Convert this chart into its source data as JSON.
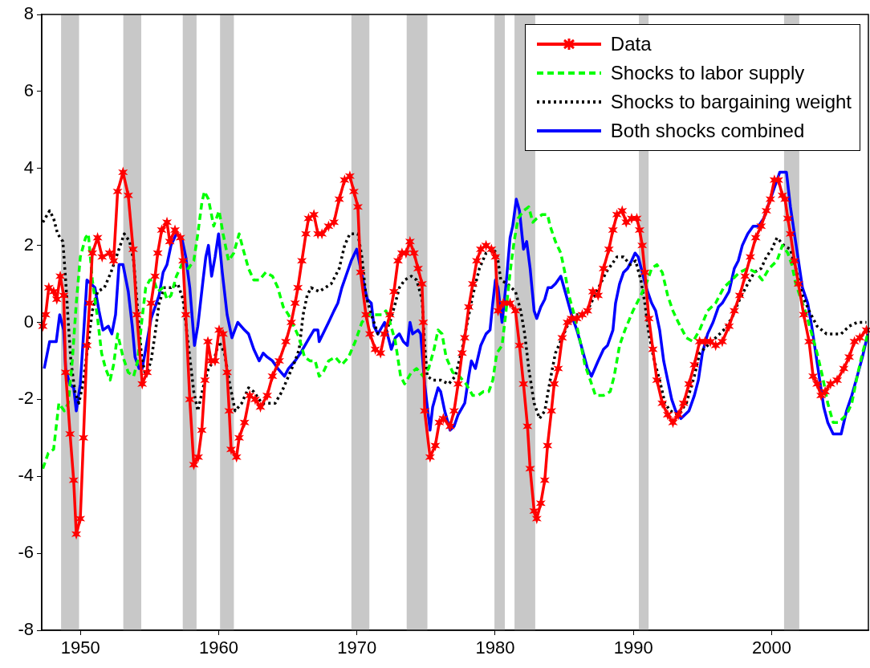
{
  "chart_data": {
    "type": "line",
    "xlim": [
      1947.2,
      2007.0
    ],
    "xticks": [
      1950,
      1960,
      1970,
      1980,
      1990,
      2000
    ],
    "ylim": [
      -8,
      8
    ],
    "yticks": [
      -8,
      -6,
      -4,
      -2,
      0,
      2,
      4,
      6,
      8
    ],
    "grid": false,
    "legend": "top right",
    "bands": [
      {
        "axis": "x",
        "from": 1948.6,
        "to": 1949.9,
        "color": "#c8c8c8"
      },
      {
        "axis": "x",
        "from": 1953.1,
        "to": 1954.4,
        "color": "#c8c8c8"
      },
      {
        "axis": "x",
        "from": 1957.4,
        "to": 1958.4,
        "color": "#c8c8c8"
      },
      {
        "axis": "x",
        "from": 1960.1,
        "to": 1961.1,
        "color": "#c8c8c8"
      },
      {
        "axis": "x",
        "from": 1969.6,
        "to": 1970.9,
        "color": "#c8c8c8"
      },
      {
        "axis": "x",
        "from": 1973.6,
        "to": 1975.1,
        "color": "#c8c8c8"
      },
      {
        "axis": "x",
        "from": 1979.95,
        "to": 1980.7,
        "color": "#c8c8c8"
      },
      {
        "axis": "x",
        "from": 1981.4,
        "to": 1982.9,
        "color": "#c8c8c8"
      },
      {
        "axis": "x",
        "from": 1990.4,
        "to": 1991.1,
        "color": "#c8c8c8"
      },
      {
        "axis": "x",
        "from": 2000.9,
        "to": 2002.0,
        "color": "#c8c8c8"
      }
    ],
    "series": [
      {
        "name": "Data",
        "color": "#ff0000",
        "line_style": "solid",
        "marker": "cross",
        "x": [
          1947.28,
          1947.48,
          1947.71,
          1948.06,
          1948.29,
          1948.54,
          1948.79,
          1948.93,
          1949.25,
          1949.51,
          1949.7,
          1949.99,
          1950.22,
          1950.47,
          1950.66,
          1950.86,
          1951.24,
          1951.57,
          1952.11,
          1952.4,
          1952.69,
          1953.08,
          1953.46,
          1953.81,
          1954.08,
          1954.47,
          1954.82,
          1955.11,
          1955.4,
          1955.59,
          1955.88,
          1956.26,
          1956.46,
          1956.84,
          1957.23,
          1957.42,
          1957.62,
          1957.91,
          1958.2,
          1958.52,
          1958.78,
          1959.01,
          1959.22,
          1959.45,
          1959.74,
          1960.03,
          1960.32,
          1960.61,
          1960.76,
          1960.9,
          1961.29,
          1961.48,
          1961.87,
          1962.25,
          1962.64,
          1963.02,
          1963.51,
          1963.89,
          1964.38,
          1964.86,
          1965.25,
          1965.53,
          1965.73,
          1966.02,
          1966.31,
          1966.5,
          1966.89,
          1967.18,
          1967.47,
          1967.95,
          1968.34,
          1968.72,
          1969.11,
          1969.49,
          1969.78,
          1970.07,
          1970.27,
          1970.65,
          1970.94,
          1971.33,
          1971.71,
          1972.0,
          1972.39,
          1972.68,
          1972.97,
          1973.26,
          1973.55,
          1973.84,
          1974.13,
          1974.42,
          1974.71,
          1974.8,
          1974.9,
          1975.29,
          1975.67,
          1975.96,
          1976.25,
          1976.74,
          1977.03,
          1977.32,
          1977.61,
          1977.8,
          1978.09,
          1978.38,
          1978.67,
          1978.96,
          1979.34,
          1979.73,
          1980.02,
          1980.21,
          1980.6,
          1981.08,
          1981.47,
          1981.76,
          1982.05,
          1982.34,
          1982.53,
          1982.82,
          1983.01,
          1983.3,
          1983.59,
          1983.79,
          1984.07,
          1984.27,
          1984.56,
          1984.85,
          1985.23,
          1985.52,
          1985.91,
          1986.3,
          1986.68,
          1987.07,
          1987.45,
          1987.84,
          1988.23,
          1988.52,
          1988.81,
          1989.19,
          1989.48,
          1989.87,
          1990.25,
          1990.45,
          1990.64,
          1990.83,
          1991.12,
          1991.41,
          1991.7,
          1992.09,
          1992.48,
          1992.86,
          1993.25,
          1993.63,
          1994.02,
          1994.41,
          1994.79,
          1995.18,
          1995.57,
          1995.95,
          1996.43,
          1996.92,
          1997.3,
          1997.69,
          1998.08,
          1998.46,
          1998.85,
          1999.24,
          1999.62,
          1999.91,
          2000.2,
          2000.49,
          2000.78,
          2000.97,
          2001.17,
          2001.36,
          2001.65,
          2001.94,
          2002.32,
          2002.71,
          2003.0,
          2003.29,
          2003.58,
          2003.87,
          2004.26,
          2004.74,
          2005.22,
          2005.61,
          2005.99,
          2006.38,
          2006.86
        ],
        "values": [
          -0.1,
          0.2,
          0.9,
          0.8,
          0.6,
          1.2,
          0.7,
          -1.3,
          -2.9,
          -4.1,
          -5.5,
          -5.1,
          -3.0,
          -0.6,
          0.5,
          1.8,
          2.2,
          1.7,
          1.8,
          1.6,
          3.4,
          3.9,
          3.3,
          1.9,
          0.2,
          -1.6,
          -1.3,
          0.5,
          1.2,
          1.8,
          2.4,
          2.6,
          2.1,
          2.4,
          2.2,
          1.6,
          0.2,
          -2.0,
          -3.7,
          -3.5,
          -2.8,
          -1.5,
          -0.5,
          -1.0,
          -1.0,
          -0.2,
          -0.3,
          -1.3,
          -2.3,
          -3.3,
          -3.5,
          -3.0,
          -2.6,
          -1.9,
          -2.0,
          -2.2,
          -1.9,
          -1.4,
          -1.0,
          -0.5,
          0.0,
          0.5,
          0.9,
          1.6,
          2.3,
          2.7,
          2.8,
          2.3,
          2.3,
          2.5,
          2.6,
          3.2,
          3.7,
          3.8,
          3.4,
          3.0,
          1.3,
          0.2,
          -0.3,
          -0.7,
          -0.8,
          -0.3,
          0.2,
          0.8,
          1.6,
          1.8,
          1.8,
          2.1,
          1.8,
          1.4,
          1.0,
          0.0,
          -2.3,
          -3.5,
          -3.2,
          -2.6,
          -2.5,
          -2.7,
          -2.3,
          -1.6,
          -0.8,
          -0.4,
          0.4,
          1.0,
          1.6,
          1.9,
          2.0,
          1.9,
          1.7,
          0.3,
          0.5,
          0.5,
          0.3,
          -0.6,
          -1.6,
          -2.7,
          -3.8,
          -4.9,
          -5.1,
          -4.7,
          -4.1,
          -3.2,
          -2.3,
          -1.6,
          -1.2,
          -0.4,
          0.0,
          0.1,
          0.1,
          0.2,
          0.3,
          0.8,
          0.7,
          1.4,
          1.9,
          2.4,
          2.8,
          2.9,
          2.6,
          2.7,
          2.7,
          2.4,
          2.0,
          1.3,
          0.1,
          -0.7,
          -1.5,
          -2.1,
          -2.4,
          -2.6,
          -2.4,
          -2.1,
          -1.6,
          -1.1,
          -0.5,
          -0.5,
          -0.5,
          -0.6,
          -0.5,
          -0.1,
          0.3,
          0.7,
          1.2,
          1.7,
          2.2,
          2.5,
          2.9,
          3.2,
          3.7,
          3.7,
          3.3,
          3.2,
          2.7,
          2.3,
          1.6,
          1.0,
          0.2,
          -0.5,
          -1.4,
          -1.6,
          -1.9,
          -1.8,
          -1.6,
          -1.5,
          -1.2,
          -0.9,
          -0.5,
          -0.4,
          -0.2
        ]
      },
      {
        "name": "Shocks to labor supply",
        "color": "#00ff00",
        "line_style": "dashed",
        "marker": "none",
        "x": [
          1947.28,
          1947.67,
          1948.06,
          1948.44,
          1948.83,
          1949.12,
          1949.41,
          1949.7,
          1949.99,
          1950.37,
          1950.57,
          1950.86,
          1951.24,
          1951.53,
          1951.82,
          1952.15,
          1952.4,
          1952.69,
          1953.08,
          1953.46,
          1953.85,
          1954.14,
          1954.43,
          1954.72,
          1955.01,
          1955.3,
          1955.59,
          1955.98,
          1956.26,
          1956.55,
          1956.94,
          1957.33,
          1957.81,
          1958.2,
          1958.49,
          1958.78,
          1958.97,
          1959.26,
          1959.64,
          1960.03,
          1960.32,
          1960.71,
          1961.09,
          1961.48,
          1961.77,
          1962.16,
          1962.54,
          1962.93,
          1963.41,
          1963.89,
          1964.28,
          1964.67,
          1965.05,
          1965.44,
          1965.82,
          1966.21,
          1966.6,
          1966.98,
          1967.27,
          1967.56,
          1967.95,
          1968.43,
          1968.91,
          1969.4,
          1969.88,
          1970.36,
          1970.85,
          1971.33,
          1971.81,
          1972.1,
          1972.39,
          1972.78,
          1973.16,
          1973.45,
          1973.94,
          1974.32,
          1974.8,
          1975.19,
          1975.58,
          1975.87,
          1976.16,
          1976.45,
          1976.93,
          1977.41,
          1977.89,
          1978.38,
          1978.76,
          1979.15,
          1979.54,
          1979.83,
          1980.12,
          1980.5,
          1980.79,
          1981.08,
          1981.37,
          1981.66,
          1982.05,
          1982.43,
          1982.72,
          1983.01,
          1983.4,
          1983.79,
          1983.98,
          1984.36,
          1984.75,
          1985.04,
          1985.33,
          1985.72,
          1986.1,
          1986.49,
          1986.88,
          1987.26,
          1987.84,
          1988.32,
          1988.61,
          1989.0,
          1989.39,
          1989.97,
          1990.54,
          1991.03,
          1991.32,
          1991.7,
          1992.09,
          1992.48,
          1992.86,
          1993.25,
          1993.83,
          1994.31,
          1994.79,
          1995.37,
          1995.95,
          1996.53,
          1997.11,
          1997.69,
          1998.27,
          1998.85,
          1999.33,
          1999.81,
          2000.39,
          2000.78,
          2001.17,
          2001.46,
          2001.75,
          2002.13,
          2002.52,
          2002.9,
          2003.29,
          2003.68,
          2004.06,
          2004.45,
          2004.84,
          2005.42,
          2005.8,
          2006.19,
          2006.57,
          2006.96
        ],
        "values": [
          -3.8,
          -3.4,
          -3.3,
          -2.1,
          -2.3,
          -2.1,
          -1.0,
          0.5,
          1.7,
          2.2,
          2.3,
          1.1,
          0.1,
          -0.8,
          -1.2,
          -1.5,
          -1.1,
          -0.3,
          -0.9,
          -1.3,
          -1.4,
          -1.0,
          0.0,
          0.9,
          1.1,
          1.1,
          0.8,
          0.9,
          0.6,
          0.7,
          1.2,
          1.5,
          1.4,
          1.6,
          2.3,
          3.1,
          3.4,
          3.2,
          2.5,
          2.9,
          2.3,
          1.6,
          1.8,
          2.3,
          1.9,
          1.4,
          1.1,
          1.1,
          1.3,
          1.2,
          0.9,
          0.4,
          0.2,
          -0.1,
          -0.4,
          -0.9,
          -1.0,
          -1.0,
          -1.4,
          -1.3,
          -1.0,
          -0.9,
          -1.1,
          -0.9,
          -0.5,
          0.0,
          0.2,
          0.2,
          0.2,
          0.3,
          0.0,
          -0.5,
          -1.4,
          -1.6,
          -1.3,
          -1.2,
          -1.4,
          -1.2,
          -0.7,
          -0.2,
          -0.3,
          -0.9,
          -1.3,
          -1.4,
          -1.6,
          -1.9,
          -1.9,
          -1.8,
          -1.8,
          -1.5,
          -0.8,
          -0.6,
          0.3,
          1.3,
          2.1,
          2.7,
          2.9,
          3.0,
          2.6,
          2.7,
          2.8,
          2.8,
          2.5,
          2.1,
          1.8,
          1.3,
          0.7,
          0.2,
          -0.4,
          -1.1,
          -1.5,
          -1.9,
          -1.9,
          -1.8,
          -1.4,
          -0.6,
          -0.2,
          0.3,
          0.7,
          1.1,
          1.4,
          1.5,
          1.3,
          0.7,
          0.3,
          0.0,
          -0.4,
          -0.5,
          -0.2,
          0.3,
          0.5,
          0.9,
          1.1,
          1.3,
          1.4,
          1.3,
          1.1,
          1.4,
          1.6,
          2.0,
          1.8,
          1.5,
          1.0,
          0.6,
          0.2,
          -0.3,
          -0.8,
          -1.4,
          -2.1,
          -2.6,
          -2.6,
          -2.4,
          -2.1,
          -1.4,
          -0.8,
          -0.3
        ]
      },
      {
        "name": "Shocks to bargaining weight",
        "color": "#000000",
        "line_style": "dotted",
        "marker": "none",
        "x": [
          1947.28,
          1947.77,
          1948.06,
          1948.35,
          1948.73,
          1948.93,
          1949.12,
          1949.31,
          1949.6,
          1949.89,
          1950.18,
          1950.47,
          1950.86,
          1951.24,
          1951.73,
          1952.21,
          1952.69,
          1953.17,
          1953.56,
          1953.85,
          1954.14,
          1954.43,
          1954.72,
          1955.11,
          1955.4,
          1955.69,
          1956.07,
          1956.55,
          1957.04,
          1957.42,
          1957.81,
          1958.2,
          1958.49,
          1958.87,
          1959.26,
          1959.64,
          1960.03,
          1960.42,
          1960.8,
          1961.19,
          1961.67,
          1962.16,
          1962.54,
          1963.12,
          1963.51,
          1964.09,
          1964.57,
          1965.05,
          1965.53,
          1965.82,
          1966.11,
          1966.4,
          1966.69,
          1967.27,
          1968.14,
          1968.72,
          1969.11,
          1969.49,
          1970.07,
          1970.36,
          1970.65,
          1971.04,
          1971.52,
          1972.0,
          1972.39,
          1972.78,
          1973.07,
          1973.45,
          1973.94,
          1974.32,
          1974.71,
          1974.9,
          1975.09,
          1975.48,
          1976.06,
          1976.64,
          1977.12,
          1977.61,
          1977.99,
          1978.38,
          1978.86,
          1979.34,
          1979.83,
          1980.12,
          1980.41,
          1980.89,
          1981.47,
          1981.85,
          1982.14,
          1982.43,
          1982.82,
          1983.21,
          1983.59,
          1983.98,
          1984.36,
          1984.85,
          1985.33,
          1985.72,
          1986.3,
          1986.68,
          1987.07,
          1988.03,
          1988.81,
          1989.29,
          1989.77,
          1990.16,
          1990.54,
          1990.83,
          1991.12,
          1991.51,
          1991.9,
          1992.28,
          1992.67,
          1993.25,
          1993.83,
          1994.41,
          1994.79,
          1995.37,
          1995.95,
          1996.53,
          1997.11,
          1997.69,
          1998.27,
          1998.75,
          1999.24,
          1999.62,
          2000.01,
          2000.39,
          2000.88,
          2001.36,
          2001.75,
          2002.23,
          2002.71,
          2003.29,
          2003.97,
          2004.45,
          2005.03,
          2005.61,
          2006.19,
          2006.86
        ],
        "values": [
          2.6,
          2.9,
          2.7,
          2.3,
          2.1,
          1.1,
          0.0,
          -1.0,
          -1.8,
          -2.1,
          -1.6,
          -0.8,
          0.3,
          0.8,
          0.9,
          1.3,
          1.8,
          2.3,
          2.1,
          1.6,
          0.3,
          -0.9,
          -1.4,
          -1.0,
          -0.3,
          0.5,
          0.9,
          0.9,
          1.0,
          0.6,
          -0.6,
          -1.8,
          -2.3,
          -1.7,
          -1.2,
          -1.0,
          -0.5,
          -0.8,
          -1.6,
          -2.3,
          -2.1,
          -1.7,
          -1.8,
          -2.1,
          -2.1,
          -2.1,
          -1.8,
          -1.4,
          -1.0,
          -0.7,
          0.2,
          0.7,
          0.9,
          0.8,
          1.0,
          1.4,
          2.0,
          2.3,
          2.3,
          1.7,
          0.7,
          0.2,
          -0.3,
          -0.3,
          0.0,
          0.5,
          0.9,
          1.1,
          1.2,
          1.1,
          0.6,
          -0.6,
          -1.4,
          -1.5,
          -1.5,
          -1.6,
          -1.4,
          -0.7,
          0.0,
          0.7,
          1.4,
          1.8,
          1.9,
          1.8,
          1.1,
          1.0,
          0.8,
          0.3,
          -0.3,
          -1.2,
          -2.1,
          -2.5,
          -2.3,
          -1.5,
          -0.8,
          -0.4,
          0.0,
          0.2,
          0.2,
          0.3,
          0.6,
          1.3,
          1.7,
          1.7,
          1.5,
          1.6,
          1.1,
          0.5,
          -0.3,
          -1.0,
          -1.5,
          -2.1,
          -2.3,
          -2.4,
          -2.1,
          -1.4,
          -0.8,
          -0.6,
          -0.4,
          -0.2,
          0.1,
          0.6,
          1.0,
          1.3,
          1.4,
          1.7,
          1.9,
          2.2,
          2.0,
          1.9,
          1.4,
          0.7,
          0.3,
          -0.1,
          -0.3,
          -0.3,
          -0.3,
          -0.1,
          0.0,
          0.0
        ]
      },
      {
        "name": "Both shocks combined",
        "color": "#0000ff",
        "line_style": "solid",
        "marker": "none",
        "x": [
          1947.38,
          1947.77,
          1948.25,
          1948.5,
          1948.79,
          1948.93,
          1949.22,
          1949.51,
          1949.7,
          1949.99,
          1950.28,
          1950.47,
          1950.76,
          1951.05,
          1951.34,
          1951.63,
          1952.02,
          1952.27,
          1952.54,
          1952.79,
          1953.08,
          1953.46,
          1953.75,
          1953.95,
          1954.24,
          1954.47,
          1954.72,
          1955.11,
          1955.4,
          1955.69,
          1955.98,
          1956.26,
          1956.55,
          1956.94,
          1957.33,
          1957.62,
          1957.91,
          1958.25,
          1958.49,
          1958.87,
          1959.07,
          1959.26,
          1959.49,
          1959.74,
          1959.99,
          1960.26,
          1960.61,
          1960.96,
          1961.38,
          1961.87,
          1962.16,
          1962.54,
          1962.93,
          1963.22,
          1963.51,
          1963.89,
          1964.28,
          1964.76,
          1965.05,
          1965.53,
          1965.92,
          1966.4,
          1966.89,
          1967.18,
          1967.27,
          1967.95,
          1968.34,
          1968.62,
          1968.91,
          1969.2,
          1969.59,
          1969.98,
          1970.27,
          1970.56,
          1970.75,
          1971.04,
          1971.23,
          1971.52,
          1972.0,
          1972.2,
          1972.49,
          1972.78,
          1973.07,
          1973.36,
          1973.65,
          1973.84,
          1974.03,
          1974.42,
          1974.61,
          1974.9,
          1975.29,
          1975.48,
          1975.87,
          1976.06,
          1976.35,
          1976.74,
          1977.03,
          1977.32,
          1977.8,
          1978.09,
          1978.28,
          1978.57,
          1978.96,
          1979.34,
          1979.63,
          1979.83,
          1980.02,
          1980.21,
          1980.5,
          1980.79,
          1981.08,
          1981.27,
          1981.53,
          1981.76,
          1982.05,
          1982.28,
          1982.53,
          1982.82,
          1983.01,
          1983.3,
          1983.59,
          1983.82,
          1984.07,
          1984.36,
          1984.75,
          1985.14,
          1985.52,
          1985.91,
          1986.3,
          1986.68,
          1986.97,
          1987.45,
          1987.84,
          1988.13,
          1988.52,
          1988.71,
          1989.0,
          1989.29,
          1989.58,
          1989.87,
          1990.12,
          1990.35,
          1990.64,
          1990.93,
          1991.32,
          1991.61,
          1991.9,
          1992.19,
          1992.48,
          1992.77,
          1993.06,
          1993.44,
          1994.02,
          1994.41,
          1994.7,
          1994.99,
          1995.37,
          1995.76,
          1996.15,
          1996.43,
          1996.92,
          1997.3,
          1997.59,
          1997.88,
          1998.27,
          1998.66,
          1999.04,
          1999.43,
          1999.81,
          2000.2,
          2000.59,
          2000.78,
          2001.07,
          2001.36,
          2001.65,
          2001.94,
          2002.23,
          2002.61,
          2002.9,
          2003.19,
          2003.48,
          2003.77,
          2004.06,
          2004.45,
          2005.03,
          2005.42,
          2005.8,
          2006.19,
          2006.57,
          2006.96
        ],
        "values": [
          -1.2,
          -0.5,
          -0.5,
          0.2,
          -0.2,
          -1.2,
          -1.6,
          -1.7,
          -2.3,
          -1.6,
          0.0,
          1.1,
          1.0,
          0.9,
          0.3,
          -0.2,
          -0.1,
          -0.3,
          0.2,
          1.5,
          1.5,
          0.8,
          -0.1,
          -0.9,
          -1.2,
          -1.2,
          -0.7,
          0.1,
          0.4,
          0.7,
          1.3,
          1.5,
          2.0,
          2.3,
          2.2,
          1.7,
          0.9,
          -0.6,
          -0.1,
          1.1,
          1.7,
          2.0,
          1.2,
          1.7,
          2.3,
          1.3,
          0.2,
          -0.4,
          0.0,
          -0.2,
          -0.3,
          -0.7,
          -1.0,
          -0.8,
          -0.9,
          -1.0,
          -1.2,
          -1.4,
          -1.2,
          -1.0,
          -0.8,
          -0.5,
          -0.2,
          -0.2,
          -0.5,
          0.0,
          0.3,
          0.5,
          0.9,
          1.2,
          1.6,
          1.9,
          1.4,
          0.9,
          0.6,
          0.5,
          -0.1,
          -0.3,
          0.0,
          -0.3,
          -0.7,
          -0.4,
          -0.3,
          -0.5,
          -0.6,
          0.0,
          -0.3,
          -0.2,
          -0.3,
          -1.6,
          -2.8,
          -2.2,
          -1.7,
          -1.8,
          -2.3,
          -2.8,
          -2.7,
          -2.4,
          -2.1,
          -1.4,
          -1.0,
          -1.2,
          -0.6,
          -0.3,
          -0.2,
          0.5,
          1.1,
          0.9,
          0.0,
          1.0,
          2.2,
          2.5,
          3.2,
          2.9,
          1.9,
          2.1,
          1.4,
          0.3,
          0.1,
          0.4,
          0.6,
          0.9,
          0.9,
          1.0,
          1.2,
          0.7,
          0.2,
          -0.2,
          -0.7,
          -1.2,
          -1.4,
          -1.0,
          -0.7,
          -0.6,
          -0.2,
          0.5,
          1.0,
          1.3,
          1.4,
          1.6,
          1.8,
          1.7,
          1.3,
          0.9,
          0.5,
          0.3,
          -0.2,
          -1.0,
          -1.5,
          -2.0,
          -2.3,
          -2.5,
          -2.3,
          -1.9,
          -1.5,
          -0.8,
          -0.3,
          0.0,
          0.4,
          0.5,
          0.8,
          1.4,
          1.6,
          2.0,
          2.3,
          2.5,
          2.5,
          2.7,
          3.1,
          3.5,
          3.9,
          3.9,
          3.9,
          3.0,
          2.3,
          1.6,
          0.9,
          0.5,
          -0.1,
          -0.8,
          -1.5,
          -2.2,
          -2.6,
          -2.9,
          -2.9,
          -2.3,
          -1.9,
          -1.4,
          -0.9,
          -0.3
        ]
      }
    ]
  }
}
